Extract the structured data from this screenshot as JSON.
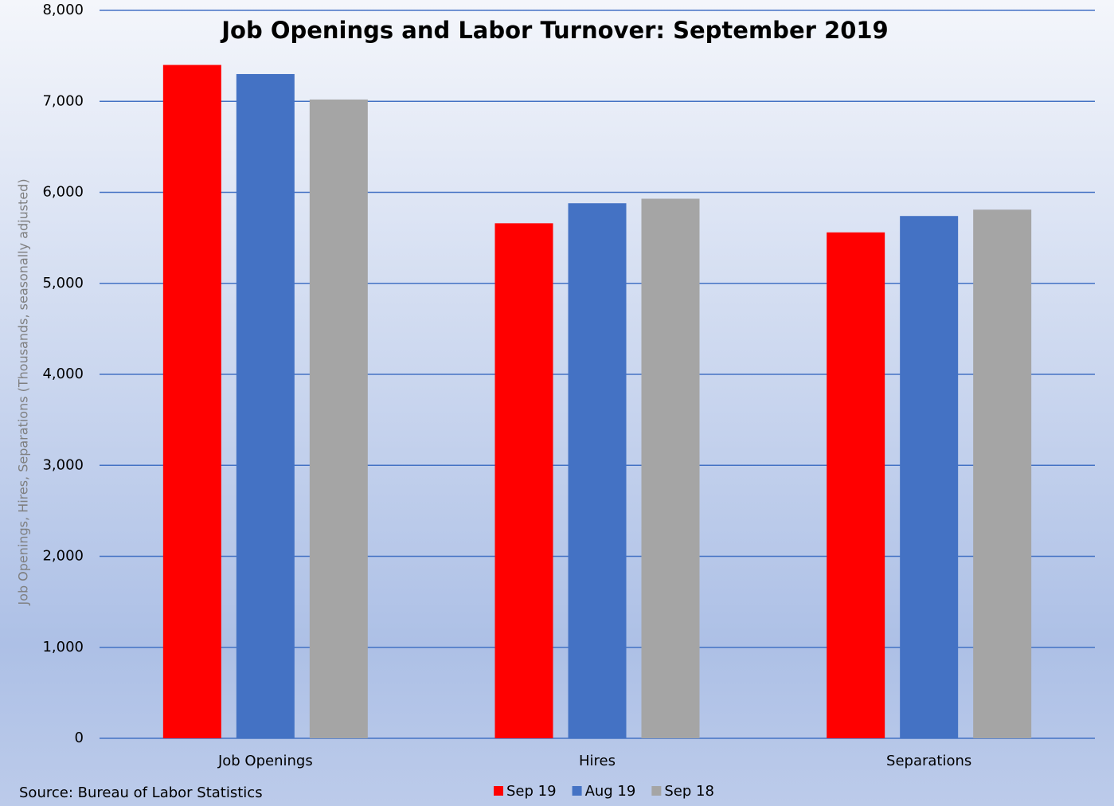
{
  "chart_data": {
    "type": "bar",
    "title": "Job Openings and Labor Turnover:  September 2019",
    "y_label": "Job Openings, Hires, Separations (Thousands, seasonally adjusted)",
    "source": "Source: Bureau of Labor Statistics",
    "categories": [
      "Job Openings",
      "Hires",
      "Separations"
    ],
    "series": [
      {
        "name": "Sep 19",
        "color": "#ff0000",
        "values": [
          7400,
          5660,
          5560
        ]
      },
      {
        "name": "Aug 19",
        "color": "#4472c4",
        "values": [
          7300,
          5880,
          5740
        ]
      },
      {
        "name": "Sep 18",
        "color": "#a5a5a5",
        "values": [
          7020,
          5930,
          5810
        ]
      }
    ],
    "ylim": [
      0,
      8000
    ],
    "yticks": [
      0,
      {
        "value": 1000,
        "label": "1,000"
      },
      {
        "value": 2000,
        "label": "2,000"
      },
      {
        "value": 3000,
        "label": "3,000"
      },
      {
        "value": 4000,
        "label": "4,000"
      },
      {
        "value": 5000,
        "label": "5,000"
      },
      {
        "value": 6000,
        "label": "6,000"
      },
      {
        "value": 7000,
        "label": "7,000"
      },
      {
        "value": 8000,
        "label": "8,000"
      }
    ],
    "grid": true,
    "legend": "bottom"
  }
}
